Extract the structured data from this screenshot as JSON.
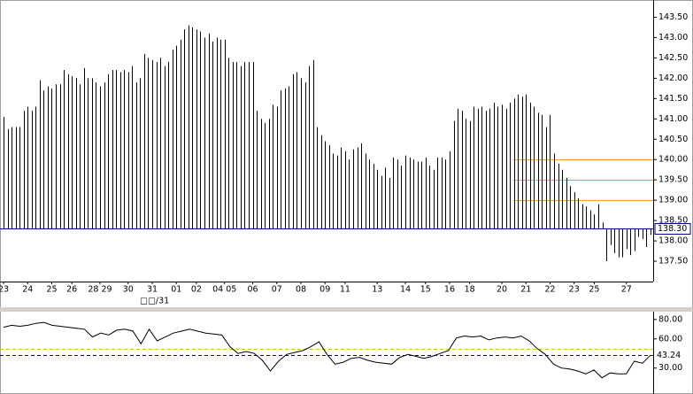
{
  "chart_data": [
    {
      "type": "bar",
      "color": "#000000",
      "values": [
        141.05,
        140.75,
        140.8,
        140.8,
        140.8,
        141.2,
        141.3,
        141.2,
        141.3,
        141.95,
        141.7,
        141.8,
        141.75,
        141.85,
        141.85,
        142.2,
        142.1,
        142.05,
        142.0,
        141.85,
        142.25,
        142.0,
        142.0,
        141.9,
        141.8,
        141.9,
        142.1,
        142.2,
        142.2,
        142.15,
        142.2,
        142.15,
        142.3,
        141.9,
        142.0,
        142.6,
        142.5,
        142.45,
        142.4,
        142.5,
        142.3,
        142.4,
        142.7,
        142.8,
        142.95,
        143.2,
        143.3,
        143.25,
        143.2,
        143.15,
        143.0,
        143.1,
        142.9,
        143.0,
        142.95,
        142.95,
        142.5,
        142.4,
        142.4,
        142.3,
        142.4,
        142.4,
        142.4,
        141.2,
        141.0,
        140.9,
        141.0,
        141.35,
        141.3,
        141.7,
        141.75,
        141.8,
        142.1,
        142.15,
        142.0,
        141.9,
        142.3,
        142.45,
        140.8,
        140.6,
        140.45,
        140.35,
        140.15,
        140.1,
        140.3,
        140.2,
        140.0,
        140.25,
        140.3,
        140.4,
        140.15,
        140.0,
        139.9,
        139.75,
        139.6,
        139.8,
        139.55,
        140.05,
        140.0,
        139.85,
        140.1,
        140.05,
        140.0,
        139.95,
        139.95,
        140.05,
        139.85,
        139.75,
        140.05,
        140.05,
        140.0,
        140.2,
        140.95,
        141.25,
        141.2,
        141.0,
        140.95,
        141.3,
        141.25,
        141.3,
        141.2,
        141.25,
        141.4,
        141.3,
        141.35,
        141.25,
        141.4,
        141.5,
        141.6,
        141.55,
        141.6,
        141.4,
        141.3,
        141.15,
        141.1,
        140.8,
        141.1,
        140.15,
        139.9,
        139.75,
        139.55,
        139.35,
        139.2,
        139.05,
        138.9,
        138.85,
        138.75,
        138.65,
        138.9,
        138.45,
        137.5,
        137.9,
        137.7,
        137.6,
        137.6,
        137.8,
        137.65,
        137.75,
        138.1,
        138.05,
        137.85,
        138.15
      ],
      "baseline": {
        "value": 138.3,
        "label": "138.30"
      },
      "baseline_color": "#000080",
      "hlines": [
        140,
        139.5,
        139
      ],
      "hline_color": "#e89a3c",
      "ylim": [
        137.0,
        143.75
      ],
      "yticks": [
        {
          "value": 137.5,
          "label": "137.50"
        },
        {
          "value": 138,
          "label": "138.00"
        },
        {
          "value": 138.5,
          "label": "138.50"
        },
        {
          "value": 139,
          "label": "139.00"
        },
        {
          "value": 139.5,
          "label": "139.50"
        },
        {
          "value": 140,
          "label": "140.00"
        },
        {
          "value": 140.5,
          "label": "140.50"
        },
        {
          "value": 141,
          "label": "141.00"
        },
        {
          "value": 141.5,
          "label": "141.50"
        },
        {
          "value": 142,
          "label": "142.00"
        },
        {
          "value": 142.5,
          "label": "142.50"
        },
        {
          "value": 143,
          "label": "143.00"
        },
        {
          "value": 143.5,
          "label": "143.50"
        }
      ],
      "xticks": [
        {
          "value": 0,
          "label": "23"
        },
        {
          "value": 6,
          "label": "24"
        },
        {
          "value": 12,
          "label": "25"
        },
        {
          "value": 17,
          "label": "26"
        },
        {
          "value": 24,
          "label": "28 29"
        },
        {
          "value": 31,
          "label": "30"
        },
        {
          "value": 37,
          "label": "31"
        },
        {
          "value": 43,
          "label": "01"
        },
        {
          "value": 48,
          "label": "02"
        },
        {
          "value": 55,
          "label": "04 05"
        },
        {
          "value": 62,
          "label": "06"
        },
        {
          "value": 68,
          "label": "07"
        },
        {
          "value": 74,
          "label": "08"
        },
        {
          "value": 80,
          "label": "09"
        },
        {
          "value": 85,
          "label": "11"
        },
        {
          "value": 93,
          "label": "13"
        },
        {
          "value": 100,
          "label": "14"
        },
        {
          "value": 105,
          "label": "15"
        },
        {
          "value": 111,
          "label": "16"
        },
        {
          "value": 116,
          "label": "18"
        },
        {
          "value": 124,
          "label": "20"
        },
        {
          "value": 130,
          "label": "21"
        },
        {
          "value": 136,
          "label": "22"
        },
        {
          "value": 142,
          "label": "23"
        },
        {
          "value": 147,
          "label": "25"
        },
        {
          "value": 155,
          "label": "27"
        }
      ],
      "x_sublabel": "□□/31"
    },
    {
      "type": "line",
      "color": "#000000",
      "values": [
        72,
        74,
        73,
        74,
        76,
        77,
        74,
        73,
        72,
        71,
        70,
        62,
        66,
        64,
        69,
        70,
        68,
        55,
        70,
        58,
        62,
        66,
        68,
        70,
        68,
        66,
        65,
        64,
        52,
        45,
        47,
        45,
        38,
        27,
        37,
        44,
        46,
        48,
        52,
        57,
        44,
        34,
        36,
        40,
        41,
        38,
        36,
        35,
        34,
        41,
        44,
        42,
        40,
        42,
        45,
        48,
        61,
        63,
        62,
        63,
        59,
        61,
        62,
        61,
        63,
        58,
        50,
        44,
        34,
        30,
        29,
        27,
        24,
        28,
        20,
        25,
        24,
        24,
        37,
        35,
        43.24
      ],
      "current_label": "43.24",
      "current_color": "#000080",
      "levels": [
        50
      ],
      "level_color": "#c8c800",
      "ylim": [
        7,
        88
      ],
      "yticks": [
        {
          "value": 80,
          "label": "80.00"
        },
        {
          "value": 60,
          "label": "60.00"
        },
        {
          "value": 30,
          "label": "30.00"
        }
      ]
    }
  ]
}
